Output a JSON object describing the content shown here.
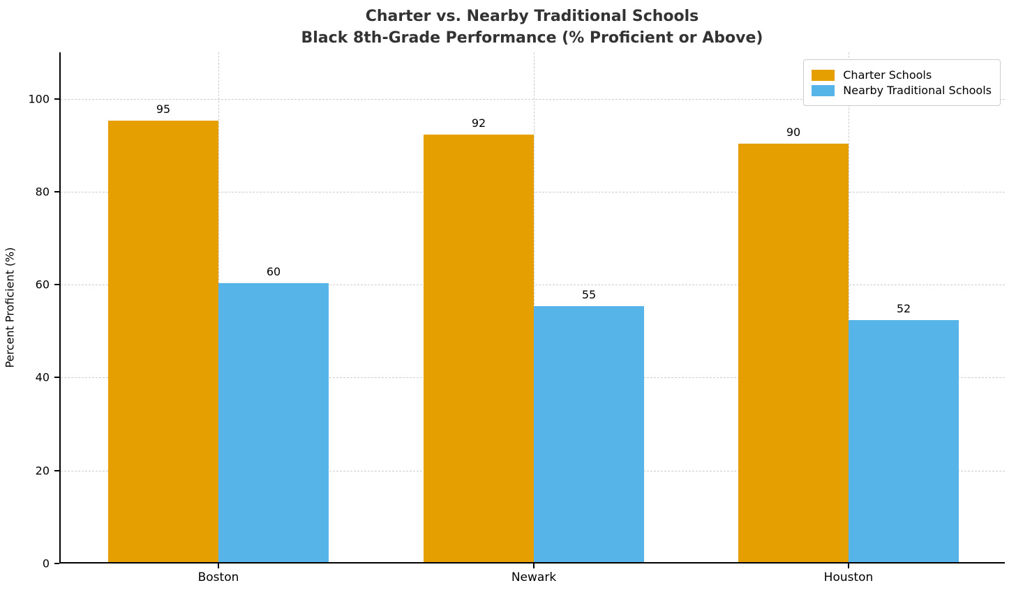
{
  "chart_data": {
    "type": "bar",
    "title_line1": "Charter vs. Nearby Traditional Schools",
    "title_line2": "Black 8th-Grade Performance (% Proficient or Above)",
    "categories": [
      "Boston",
      "Newark",
      "Houston"
    ],
    "series": [
      {
        "name": "Charter Schools",
        "color": "#E69F00",
        "values": [
          95,
          92,
          90
        ]
      },
      {
        "name": "Nearby Traditional Schools",
        "color": "#56B4E9",
        "values": [
          60,
          55,
          52
        ]
      }
    ],
    "xlabel": "",
    "ylabel": "Percent Proficient (%)",
    "ylim": [
      0,
      110
    ],
    "yticks": [
      0,
      20,
      40,
      60,
      80,
      100
    ],
    "grid": "dashed light-gray, horizontal at yticks and vertical at category centers",
    "legend_position": "upper right",
    "bar_value_labels": [
      [
        95,
        92,
        90
      ],
      [
        60,
        55,
        52
      ]
    ],
    "bar_label_color": "#000000",
    "title_color": "#333333"
  }
}
